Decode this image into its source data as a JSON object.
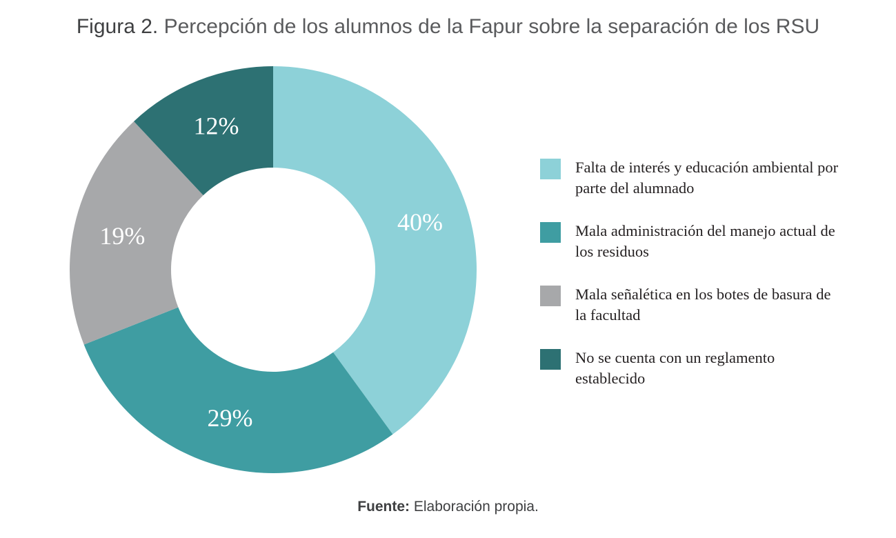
{
  "figure": {
    "label": "Figura 2.",
    "title": "Percepción de los alumnos de la Fapur sobre la separación de los RSU",
    "source_label": "Fuente:",
    "source_text": "Elaboración propia."
  },
  "chart_data": {
    "type": "pie",
    "variant": "donut",
    "title": "Percepción de los alumnos de la Fapur sobre la separación de los RSU",
    "legend_position": "right",
    "slices": [
      {
        "label": "Falta de interés y educación ambiental por parte del alumnado",
        "value": 40,
        "display": "40%",
        "color": "#8dd1d8"
      },
      {
        "label": "Mala administración del manejo actual de los residuos",
        "value": 29,
        "display": "29%",
        "color": "#3f9da2"
      },
      {
        "label": "Mala señalética en los botes de basura de la facultad",
        "value": 19,
        "display": "19%",
        "color": "#a7a8aa"
      },
      {
        "label": "No se cuenta con un reglamento establecido",
        "value": 12,
        "display": "12%",
        "color": "#2d7173"
      }
    ]
  }
}
